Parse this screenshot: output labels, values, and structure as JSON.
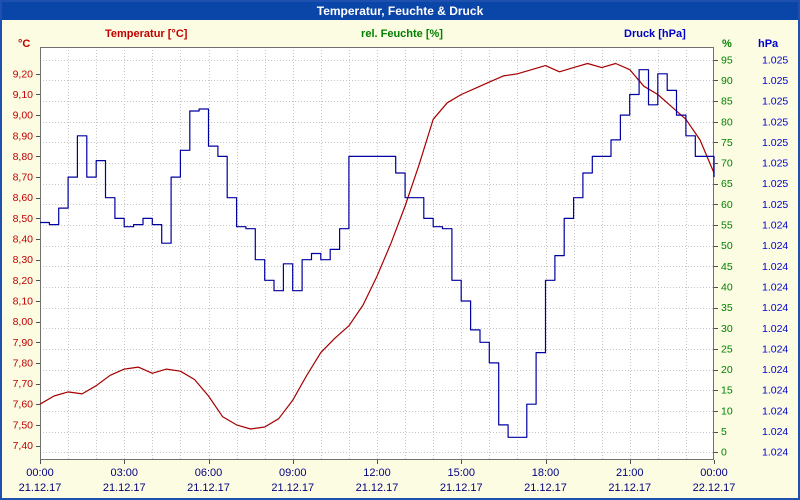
{
  "window": {
    "title": "Temperatur, Feuchte & Druck"
  },
  "legend": {
    "temperature": "Temperatur [°C]",
    "humidity": "rel. Feuchte [%]",
    "pressure": "Druck [hPa]"
  },
  "chart_data": {
    "type": "line",
    "title": "Temperatur, Feuchte & Druck",
    "x_axis": {
      "range_hours": [
        0,
        24
      ],
      "tick_hours": [
        0,
        3,
        6,
        9,
        12,
        15,
        18,
        21,
        24
      ],
      "tick_labels": [
        "00:00",
        "03:00",
        "06:00",
        "09:00",
        "12:00",
        "15:00",
        "18:00",
        "21:00",
        "00:00"
      ],
      "date_labels": [
        "21.12.17",
        "21.12.17",
        "21.12.17",
        "21.12.17",
        "21.12.17",
        "21.12.17",
        "21.12.17",
        "21.12.17",
        "22.12.17"
      ],
      "label_color": "#000080"
    },
    "axes": {
      "temperature": {
        "unit": "°C",
        "color": "#c00000",
        "range": [
          7.33,
          9.33
        ],
        "tick_values": [
          9.2,
          9.1,
          9.0,
          8.9,
          8.8,
          8.7,
          8.6,
          8.5,
          8.4,
          8.3,
          8.2,
          8.1,
          8.0,
          7.9,
          7.8,
          7.7,
          7.6,
          7.5,
          7.4
        ],
        "tick_labels": [
          "9,20",
          "9,10",
          "9,00",
          "8,90",
          "8,80",
          "8,70",
          "8,60",
          "8,50",
          "8,40",
          "8,30",
          "8,20",
          "8,10",
          "8,00",
          "7,90",
          "7,80",
          "7,70",
          "7,60",
          "7,50",
          "7,40"
        ]
      },
      "humidity": {
        "unit": "%",
        "color": "#008000",
        "range": [
          -1.9,
          98.1
        ],
        "tick_values": [
          95,
          90,
          85,
          80,
          75,
          70,
          65,
          60,
          55,
          50,
          45,
          40,
          35,
          30,
          25,
          20,
          15,
          10,
          5,
          0
        ],
        "tick_labels": [
          "95",
          "90",
          "85",
          "80",
          "75",
          "70",
          "65",
          "60",
          "55",
          "50",
          "45",
          "40",
          "35",
          "30",
          "25",
          "20",
          "15",
          "10",
          "5",
          "0"
        ]
      },
      "pressure": {
        "unit": "hPa",
        "color": "#0000cc",
        "range": [
          1023.98,
          1024.98
        ],
        "tick_labels": [
          "1.025",
          "1.025",
          "1.025",
          "1.025",
          "1.025",
          "1.025",
          "1.025",
          "1.025",
          "1.024",
          "1.024",
          "1.024",
          "1.024",
          "1.024",
          "1.024",
          "1.024",
          "1.024",
          "1.024",
          "1.024",
          "1.024",
          "1.024"
        ]
      }
    },
    "series": [
      {
        "name": "Temperatur",
        "axis": "temperature",
        "color": "#a50000",
        "mode": "line",
        "x_start": 0,
        "x_step": 0.5,
        "values": [
          7.6,
          7.64,
          7.66,
          7.65,
          7.69,
          7.74,
          7.77,
          7.78,
          7.75,
          7.77,
          7.76,
          7.72,
          7.64,
          7.54,
          7.5,
          7.48,
          7.49,
          7.53,
          7.62,
          7.74,
          7.85,
          7.92,
          7.98,
          8.08,
          8.22,
          8.38,
          8.56,
          8.76,
          8.98,
          9.06,
          9.1,
          9.13,
          9.16,
          9.19,
          9.2,
          9.22,
          9.24,
          9.21,
          9.23,
          9.25,
          9.23,
          9.25,
          9.22,
          9.14,
          9.1,
          9.04,
          8.98,
          8.88,
          8.72
        ]
      },
      {
        "name": "Druck",
        "axis": "pressure",
        "color": "#0000a0",
        "mode": "step",
        "x_start": 0,
        "x_step": 0.33333,
        "values": [
          1024.555,
          1024.55,
          1024.59,
          1024.665,
          1024.765,
          1024.665,
          1024.705,
          1024.615,
          1024.565,
          1024.545,
          1024.55,
          1024.565,
          1024.55,
          1024.505,
          1024.665,
          1024.73,
          1024.825,
          1024.83,
          1024.74,
          1024.715,
          1024.615,
          1024.545,
          1024.54,
          1024.465,
          1024.415,
          1024.39,
          1024.455,
          1024.39,
          1024.465,
          1024.48,
          1024.465,
          1024.49,
          1024.54,
          1024.715,
          1024.715,
          1024.715,
          1024.715,
          1024.715,
          1024.675,
          1024.615,
          1024.615,
          1024.565,
          1024.545,
          1024.54,
          1024.415,
          1024.365,
          1024.295,
          1024.265,
          1024.215,
          1024.065,
          1024.035,
          1024.035,
          1024.115,
          1024.24,
          1024.415,
          1024.475,
          1024.565,
          1024.615,
          1024.675,
          1024.715,
          1024.715,
          1024.755,
          1024.815,
          1024.865,
          1024.925,
          1024.84,
          1024.915,
          1024.875,
          1024.815,
          1024.765,
          1024.715,
          1024.715,
          1024.665
        ]
      }
    ],
    "grid": {
      "horizontal_at": "humidity_ticks",
      "vertical_every_hours": 1,
      "style": "dotted"
    }
  }
}
